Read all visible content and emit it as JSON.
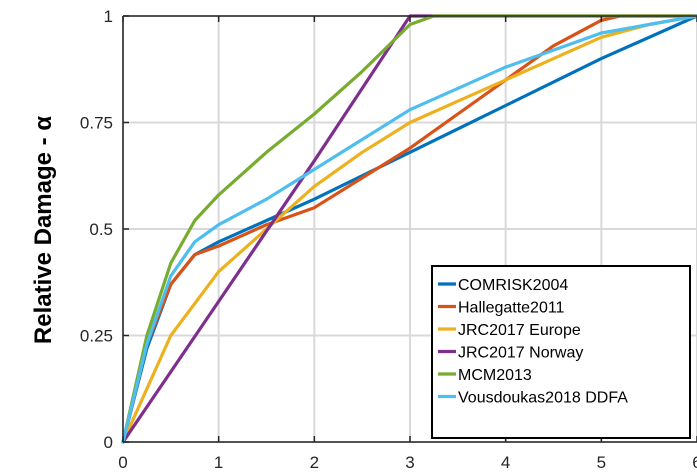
{
  "chart_data": {
    "type": "line",
    "title": "",
    "xlabel": "",
    "ylabel": "Relative Damage - α",
    "xlim": [
      0,
      6
    ],
    "ylim": [
      0,
      1
    ],
    "xticks": [
      0,
      1,
      2,
      3,
      4,
      5,
      6
    ],
    "xtick_labels": [
      "0",
      "1",
      "2",
      "3",
      "4",
      "5",
      "6"
    ],
    "yticks": [
      0,
      0.25,
      0.5,
      0.75,
      1
    ],
    "ytick_labels": [
      "0",
      "0.25",
      "0.5",
      "0.75",
      "1"
    ],
    "grid": true,
    "legend_position": "bottom-right",
    "series": [
      {
        "name": "COMRISK2004",
        "color": "#0072BD",
        "x": [
          0,
          0.25,
          0.5,
          0.75,
          1,
          1.5,
          2,
          3,
          4,
          5,
          6
        ],
        "y": [
          0,
          0.22,
          0.37,
          0.44,
          0.47,
          0.52,
          0.57,
          0.68,
          0.79,
          0.9,
          1
        ]
      },
      {
        "name": "Hallegatte2011",
        "color": "#D95319",
        "x": [
          0,
          0.25,
          0.5,
          0.75,
          1,
          1.5,
          2,
          2.5,
          3,
          3.5,
          4,
          4.5,
          5,
          5.2,
          6
        ],
        "y": [
          0,
          0.23,
          0.37,
          0.44,
          0.46,
          0.51,
          0.55,
          0.62,
          0.69,
          0.77,
          0.85,
          0.93,
          0.99,
          1,
          1
        ]
      },
      {
        "name": "JRC2017 Europe",
        "color": "#EDB120",
        "x": [
          0,
          0.5,
          1,
          1.5,
          2,
          2.5,
          3,
          3.5,
          4,
          4.5,
          5,
          5.5,
          6
        ],
        "y": [
          0,
          0.25,
          0.4,
          0.5,
          0.6,
          0.68,
          0.75,
          0.8,
          0.85,
          0.9,
          0.95,
          0.98,
          1
        ]
      },
      {
        "name": "JRC2017 Norway",
        "color": "#7E2F8E",
        "x": [
          0,
          1,
          2,
          3,
          4,
          5,
          6
        ],
        "y": [
          0,
          0.33,
          0.66,
          1,
          1,
          1,
          1
        ]
      },
      {
        "name": "MCM2013",
        "color": "#77AC30",
        "x": [
          0,
          0.25,
          0.5,
          0.75,
          1,
          1.5,
          2,
          2.5,
          3,
          3.25,
          4,
          5,
          6
        ],
        "y": [
          0,
          0.25,
          0.42,
          0.52,
          0.58,
          0.68,
          0.77,
          0.87,
          0.98,
          1,
          1,
          1,
          1
        ]
      },
      {
        "name": "Vousdoukas2018 DDFA",
        "color": "#4DBEEE",
        "x": [
          0,
          0.25,
          0.5,
          0.75,
          1,
          1.5,
          2,
          2.5,
          3,
          3.5,
          4,
          4.5,
          5,
          5.5,
          6
        ],
        "y": [
          0,
          0.23,
          0.39,
          0.47,
          0.51,
          0.57,
          0.64,
          0.71,
          0.78,
          0.83,
          0.88,
          0.92,
          0.96,
          0.98,
          1
        ]
      }
    ]
  }
}
